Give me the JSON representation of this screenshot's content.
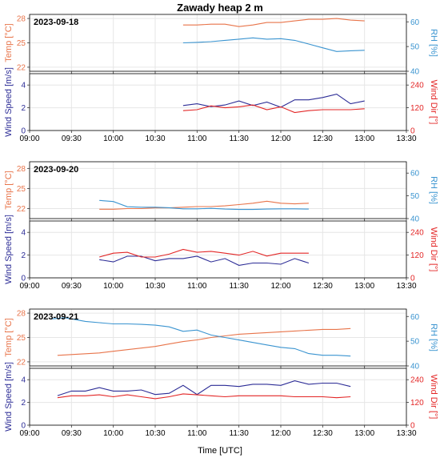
{
  "colors": {
    "temp": "#e8744a",
    "rh": "#3a94d0",
    "wind_speed": "#2c2c96",
    "wind_dir": "#e32626",
    "grid": "#e6e6e6",
    "frame": "#000000"
  },
  "chart_data": {
    "type": "line",
    "title": "Zawady heap 2 m",
    "xlabel": "Time [UTC]",
    "x_ticks": [
      "09:00",
      "09:30",
      "10:00",
      "10:30",
      "11:00",
      "11:30",
      "12:00",
      "12:30",
      "13:00",
      "13:30"
    ],
    "xlim": [
      "09:00",
      "13:30"
    ],
    "grid": true,
    "panels": [
      {
        "date": "2023-09-18",
        "upper": {
          "left_label": "Temp [°C]",
          "right_label": "RH [%]",
          "left_ticks": [
            "22",
            "25",
            "28"
          ],
          "right_ticks": [
            "40",
            "50",
            "60"
          ],
          "left_lim": [
            21.5,
            28.5
          ],
          "right_lim": [
            40,
            63
          ],
          "series": [
            {
              "axis": "left",
              "color_key": "temp",
              "x": [
                "10:50",
                "11:00",
                "11:10",
                "11:20",
                "11:30",
                "11:40",
                "11:50",
                "12:00",
                "12:10",
                "12:20",
                "12:30",
                "12:40",
                "12:50",
                "13:00"
              ],
              "y": [
                27.2,
                27.2,
                27.3,
                27.3,
                27.0,
                27.2,
                27.5,
                27.5,
                27.7,
                27.9,
                27.9,
                28.0,
                27.8,
                27.7
              ]
            },
            {
              "axis": "right",
              "color_key": "rh",
              "x": [
                "10:50",
                "11:00",
                "11:10",
                "11:20",
                "11:30",
                "11:40",
                "11:50",
                "12:00",
                "12:10",
                "12:20",
                "12:30",
                "12:40",
                "12:50",
                "13:00"
              ],
              "y": [
                51.5,
                51.7,
                52.0,
                52.5,
                53.0,
                53.5,
                53.0,
                53.2,
                52.5,
                51.0,
                49.5,
                48.0,
                48.3,
                48.5
              ]
            }
          ]
        },
        "lower": {
          "left_label": "Wind Speed [m/s]",
          "right_label": "Wind Dir [°]",
          "left_ticks": [
            "0",
            "2",
            "4"
          ],
          "right_ticks": [
            "0",
            "120",
            "240"
          ],
          "left_lim": [
            0,
            5
          ],
          "right_lim": [
            0,
            300
          ],
          "series": [
            {
              "axis": "left",
              "color_key": "wind_speed",
              "x": [
                "10:50",
                "11:00",
                "11:10",
                "11:20",
                "11:30",
                "11:40",
                "11:50",
                "12:00",
                "12:10",
                "12:20",
                "12:30",
                "12:40",
                "12:50",
                "13:00"
              ],
              "y": [
                2.2,
                2.35,
                2.1,
                2.25,
                2.6,
                2.2,
                2.5,
                2.05,
                2.7,
                2.7,
                2.9,
                3.2,
                2.35,
                2.6
              ]
            },
            {
              "axis": "right",
              "color_key": "wind_dir",
              "x": [
                "10:50",
                "11:00",
                "11:10",
                "11:20",
                "11:30",
                "11:40",
                "11:50",
                "12:00",
                "12:10",
                "12:20",
                "12:30",
                "12:40",
                "12:50",
                "13:00"
              ],
              "y": [
                105,
                110,
                130,
                120,
                125,
                135,
                110,
                125,
                95,
                105,
                110,
                110,
                110,
                115
              ]
            }
          ]
        }
      },
      {
        "date": "2023-09-20",
        "upper": {
          "left_label": "Temp [°C]",
          "right_label": "RH [%]",
          "left_ticks": [
            "22",
            "25",
            "28"
          ],
          "right_ticks": [
            "40",
            "50",
            "60"
          ],
          "left_lim": [
            20.5,
            29
          ],
          "right_lim": [
            40,
            65
          ],
          "series": [
            {
              "axis": "left",
              "color_key": "temp",
              "x": [
                "09:50",
                "10:00",
                "10:10",
                "10:20",
                "10:30",
                "10:40",
                "10:50",
                "11:00",
                "11:10",
                "11:20",
                "11:30",
                "11:40",
                "11:50",
                "12:00",
                "12:10",
                "12:20"
              ],
              "y": [
                21.9,
                21.9,
                22.0,
                22.0,
                22.1,
                22.1,
                22.2,
                22.3,
                22.3,
                22.4,
                22.6,
                22.8,
                23.1,
                22.8,
                22.7,
                22.8
              ]
            },
            {
              "axis": "right",
              "color_key": "rh",
              "x": [
                "09:50",
                "10:00",
                "10:10",
                "10:20",
                "10:30",
                "10:40",
                "10:50",
                "11:00",
                "11:10",
                "11:20",
                "11:30",
                "11:40",
                "11:50",
                "12:00",
                "12:10",
                "12:20"
              ],
              "y": [
                48.0,
                47.5,
                45.2,
                45.0,
                45.0,
                44.8,
                44.3,
                44.3,
                44.5,
                44.2,
                44.0,
                44.0,
                44.2,
                44.3,
                44.3,
                44.2
              ]
            }
          ]
        },
        "lower": {
          "left_label": "Wind Speed [m/s]",
          "right_label": "Wind Dir [°]",
          "left_ticks": [
            "0",
            "2",
            "4"
          ],
          "right_ticks": [
            "0",
            "120",
            "240"
          ],
          "left_lim": [
            0,
            5
          ],
          "right_lim": [
            0,
            300
          ],
          "series": [
            {
              "axis": "left",
              "color_key": "wind_speed",
              "x": [
                "09:50",
                "10:00",
                "10:10",
                "10:20",
                "10:30",
                "10:40",
                "10:50",
                "11:00",
                "11:10",
                "11:20",
                "11:30",
                "11:40",
                "11:50",
                "12:00",
                "12:10",
                "12:20"
              ],
              "y": [
                1.6,
                1.4,
                1.9,
                1.9,
                1.5,
                1.7,
                1.7,
                1.9,
                1.4,
                1.7,
                1.1,
                1.3,
                1.3,
                1.2,
                1.7,
                1.3
              ]
            },
            {
              "axis": "right",
              "color_key": "wind_dir",
              "x": [
                "09:50",
                "10:00",
                "10:10",
                "10:20",
                "10:30",
                "10:40",
                "10:50",
                "11:00",
                "11:10",
                "11:20",
                "11:30",
                "11:40",
                "11:50",
                "12:00",
                "12:10",
                "12:20"
              ],
              "y": [
                110,
                130,
                135,
                110,
                110,
                125,
                150,
                135,
                140,
                130,
                120,
                140,
                115,
                130,
                130,
                130
              ]
            }
          ]
        }
      },
      {
        "date": "2023-09-21",
        "upper": {
          "left_label": "Temp [°C]",
          "right_label": "RH [%]",
          "left_ticks": [
            "22",
            "25",
            "28"
          ],
          "right_ticks": [
            "40",
            "50",
            "60"
          ],
          "left_lim": [
            21.5,
            28.5
          ],
          "right_lim": [
            40,
            63
          ],
          "series": [
            {
              "axis": "left",
              "color_key": "temp",
              "x": [
                "09:20",
                "09:30",
                "09:40",
                "09:50",
                "10:00",
                "10:10",
                "10:20",
                "10:30",
                "10:40",
                "10:50",
                "11:00",
                "11:10",
                "11:20",
                "11:30",
                "11:40",
                "11:50",
                "12:00",
                "12:10",
                "12:20",
                "12:30",
                "12:40",
                "12:50"
              ],
              "y": [
                22.8,
                22.9,
                23.0,
                23.1,
                23.3,
                23.5,
                23.7,
                23.9,
                24.2,
                24.5,
                24.7,
                25.0,
                25.2,
                25.4,
                25.5,
                25.6,
                25.7,
                25.8,
                25.9,
                26.0,
                26.0,
                26.1
              ]
            },
            {
              "axis": "right",
              "color_key": "rh",
              "x": [
                "09:15",
                "09:20",
                "09:25",
                "09:30",
                "09:40",
                "09:50",
                "10:00",
                "10:10",
                "10:20",
                "10:30",
                "10:40",
                "10:50",
                "11:00",
                "11:10",
                "11:20",
                "11:30",
                "11:40",
                "11:50",
                "12:00",
                "12:10",
                "12:20",
                "12:30",
                "12:40",
                "12:50"
              ],
              "y": [
                59.0,
                59.2,
                59.5,
                59.0,
                58.0,
                57.5,
                57.0,
                57.0,
                56.8,
                56.5,
                55.8,
                54.0,
                54.5,
                52.5,
                51.5,
                50.5,
                49.5,
                48.5,
                47.5,
                47.0,
                45.0,
                44.3,
                44.3,
                44.0
              ]
            }
          ]
        },
        "lower": {
          "left_label": "Wind Speed [m/s]",
          "right_label": "Wind Dir [°]",
          "left_ticks": [
            "0",
            "2",
            "4"
          ],
          "right_ticks": [
            "0",
            "120",
            "240"
          ],
          "left_lim": [
            0,
            5
          ],
          "right_lim": [
            0,
            300
          ],
          "series": [
            {
              "axis": "left",
              "color_key": "wind_speed",
              "x": [
                "09:20",
                "09:30",
                "09:40",
                "09:50",
                "10:00",
                "10:10",
                "10:20",
                "10:30",
                "10:40",
                "10:50",
                "11:00",
                "11:10",
                "11:20",
                "11:30",
                "11:40",
                "11:50",
                "12:00",
                "12:10",
                "12:20",
                "12:30",
                "12:40",
                "12:50"
              ],
              "y": [
                2.6,
                3.0,
                3.0,
                3.3,
                3.0,
                3.0,
                3.1,
                2.7,
                2.8,
                3.5,
                2.7,
                3.5,
                3.5,
                3.4,
                3.6,
                3.6,
                3.5,
                3.9,
                3.6,
                3.7,
                3.7,
                3.4
              ]
            },
            {
              "axis": "right",
              "color_key": "wind_dir",
              "x": [
                "09:20",
                "09:30",
                "09:40",
                "09:50",
                "10:00",
                "10:10",
                "10:20",
                "10:30",
                "10:40",
                "10:50",
                "11:00",
                "11:10",
                "11:20",
                "11:30",
                "11:40",
                "11:50",
                "12:00",
                "12:10",
                "12:20",
                "12:30",
                "12:40",
                "12:50"
              ],
              "y": [
                145,
                155,
                155,
                160,
                150,
                160,
                150,
                140,
                150,
                165,
                160,
                155,
                150,
                155,
                155,
                155,
                155,
                150,
                150,
                150,
                145,
                150
              ]
            }
          ]
        }
      }
    ]
  }
}
